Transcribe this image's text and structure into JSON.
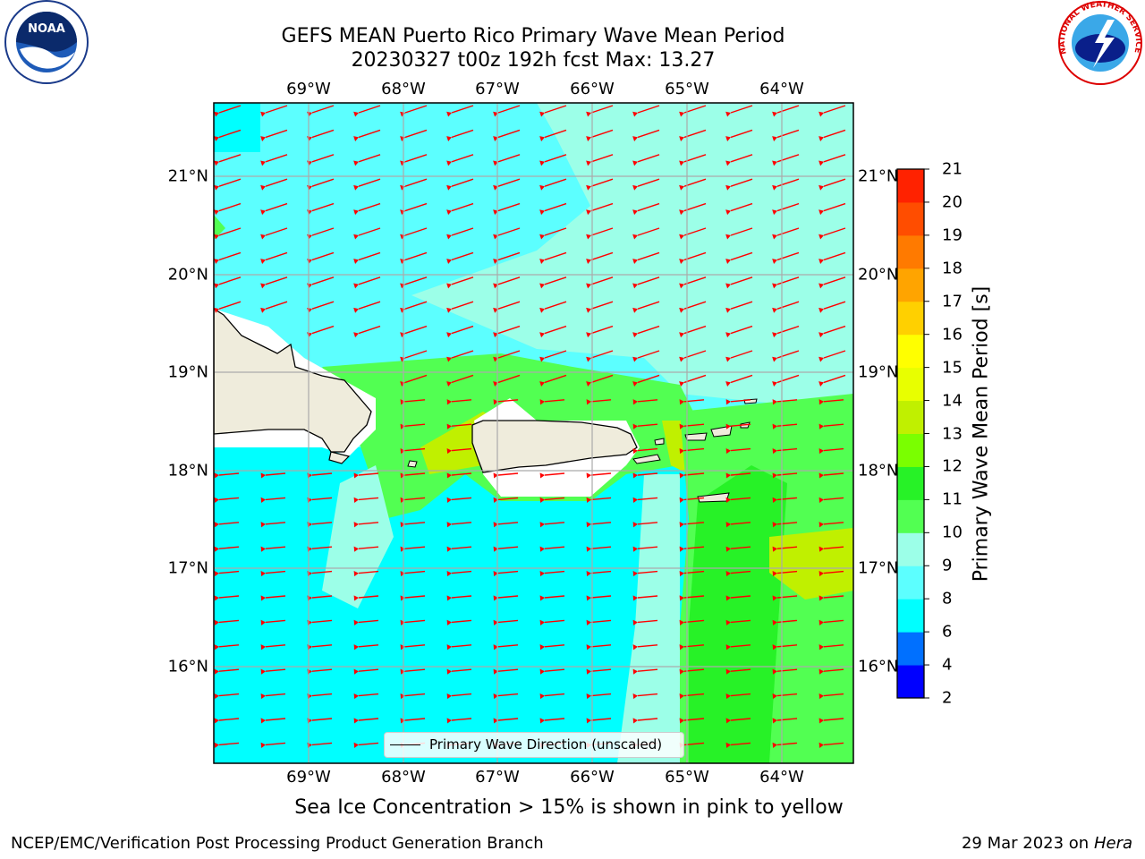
{
  "title_line1": "GEFS MEAN Puerto Rico Primary Wave Mean Period",
  "title_line2": "20230327 t00z 192h fcst   Max: 13.27",
  "lon_labels": [
    "69°W",
    "68°W",
    "67°W",
    "66°W",
    "65°W",
    "64°W"
  ],
  "lat_labels": [
    "21°N",
    "20°N",
    "19°N",
    "18°N",
    "17°N",
    "16°N"
  ],
  "colorbar": {
    "label": "Primary Wave Mean Period [s]",
    "ticks": [
      "2",
      "4",
      "6",
      "8",
      "9",
      "10",
      "11",
      "12",
      "13",
      "14",
      "15",
      "16",
      "17",
      "18",
      "19",
      "20",
      "21"
    ],
    "colors": [
      "#0000ff",
      "#0070ff",
      "#00ffff",
      "#5cffff",
      "#9cffe8",
      "#52ff52",
      "#27f227",
      "#7aff00",
      "#c0f000",
      "#e8ff00",
      "#ffff00",
      "#ffd000",
      "#ffa400",
      "#ff7a00",
      "#ff4d00",
      "#ff2200",
      "#ff0000"
    ]
  },
  "legend_label": "Primary Wave Direction (unscaled)",
  "subtitle": "Sea Ice Concentration > 15% is shown in pink to yellow",
  "footer_left": "NCEP/EMC/Verification Post Processing Product Generation Branch",
  "footer_right_date": "29 Mar 2023 on",
  "footer_right_host": "Hera",
  "logo_left_text": "NOAA",
  "logo_right_text": "NATIONAL WEATHER SERVICE",
  "colors": {
    "arrow": "#ff0000",
    "land": "#efecdc",
    "ocean_low": "#00ffff",
    "ocean_mid": "#5cffff",
    "ocean_high": "#9cffe8",
    "green": "#52ff52",
    "green_dark": "#27f227",
    "yellowgreen": "#c0f000",
    "grid": "#aaaaaa"
  }
}
